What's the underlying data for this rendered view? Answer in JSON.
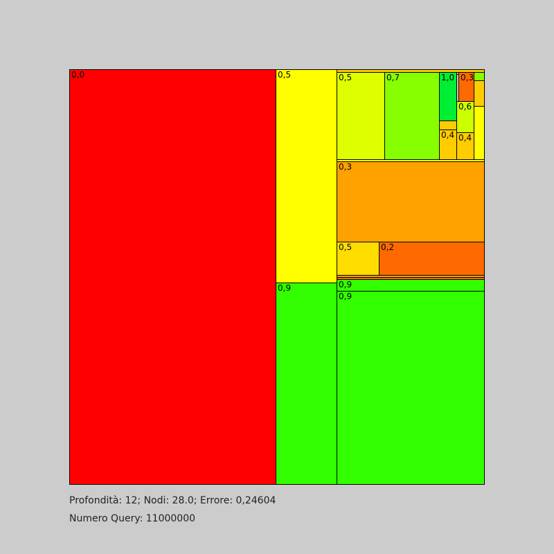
{
  "colors": {
    "background": "#cccccc",
    "border": "#000000",
    "red": "#ff0000",
    "orange_red": "#ff6a00",
    "orange": "#ffa200",
    "amber": "#ffcc00",
    "yellow": "#ffff00",
    "lime_yellow": "#ddff00",
    "yellow_green": "#88ff00",
    "green": "#33ff00",
    "bright_green": "#00ee33"
  },
  "treemap": {
    "cells": [
      {
        "id": "c01",
        "label": "0,0",
        "color": "#ff0000"
      },
      {
        "id": "c02",
        "label": "0,5",
        "color": "#ffff00"
      },
      {
        "id": "c03",
        "label": "0,9",
        "color": "#33ff00"
      },
      {
        "id": "c04",
        "label": "",
        "color": "#ffcc00"
      },
      {
        "id": "c05",
        "label": "0,5",
        "color": "#ddff00"
      },
      {
        "id": "c06",
        "label": "0,7",
        "color": "#88ff00"
      },
      {
        "id": "c07",
        "label": "1,0",
        "color": "#00ee33"
      },
      {
        "id": "c08",
        "label": "",
        "color": "#ffcc00"
      },
      {
        "id": "c09",
        "label": "0,4",
        "color": "#ffcc00"
      },
      {
        "id": "c10",
        "label": "",
        "color": "#ffcc00"
      },
      {
        "id": "c11",
        "label": "0,3",
        "color": "#ff6a00"
      },
      {
        "id": "c12",
        "label": "",
        "color": "#88ff00"
      },
      {
        "id": "c13",
        "label": "",
        "color": "#ffcc00"
      },
      {
        "id": "c14",
        "label": "0,6",
        "color": "#ccff00"
      },
      {
        "id": "c15",
        "label": "",
        "color": "#ffff00"
      },
      {
        "id": "c16",
        "label": "0,4",
        "color": "#ffcc00"
      },
      {
        "id": "c17",
        "label": "",
        "color": "#ffff00"
      },
      {
        "id": "c18",
        "label": "0,3",
        "color": "#ffa200"
      },
      {
        "id": "c19",
        "label": "0,5",
        "color": "#ffdd00"
      },
      {
        "id": "c20",
        "label": "0,2",
        "color": "#ff6a00"
      },
      {
        "id": "c21",
        "label": "",
        "color": "#ffa200"
      },
      {
        "id": "c22",
        "label": "",
        "color": "#ff6a00"
      },
      {
        "id": "c23",
        "label": "0,9",
        "color": "#33ff00"
      },
      {
        "id": "c24",
        "label": "0,9",
        "color": "#33ff00"
      }
    ]
  },
  "status": {
    "line1": "Profondità: 12; Nodi: 28.0; Errore: 0,24604",
    "line2": "Numero Query: 11000000"
  }
}
